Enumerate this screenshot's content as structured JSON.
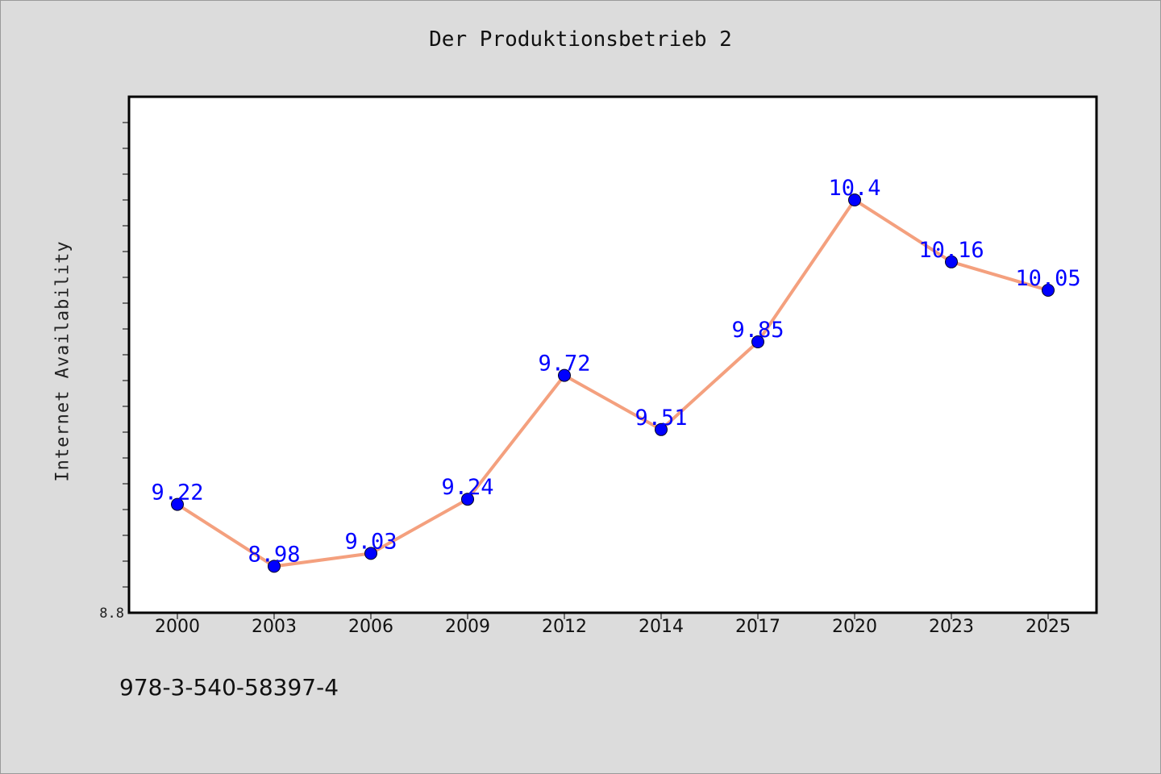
{
  "page": {
    "footnote": "978-3-540-58397-4"
  },
  "chart_data": {
    "type": "line",
    "title": "Der Produktionsbetrieb 2",
    "xlabel": "",
    "ylabel": "Internet Availability",
    "categories": [
      "2000",
      "2003",
      "2006",
      "2009",
      "2012",
      "2014",
      "2017",
      "2020",
      "2023",
      "2025"
    ],
    "series": [
      {
        "values": [
          9.22,
          8.98,
          9.03,
          9.24,
          9.72,
          9.51,
          9.85,
          10.4,
          10.16,
          10.05
        ],
        "line_color": "#f4a07e",
        "marker_color": "#0000ff",
        "label_color": "#0000ff"
      }
    ],
    "ylim": [
      8.8,
      10.8
    ],
    "y_tick_labels": [
      "8.8"
    ],
    "grid": false,
    "data_labels": true,
    "colors": {
      "background": "#dcdcdc",
      "plot_background": "#ffffff",
      "axis": "#000000"
    }
  }
}
